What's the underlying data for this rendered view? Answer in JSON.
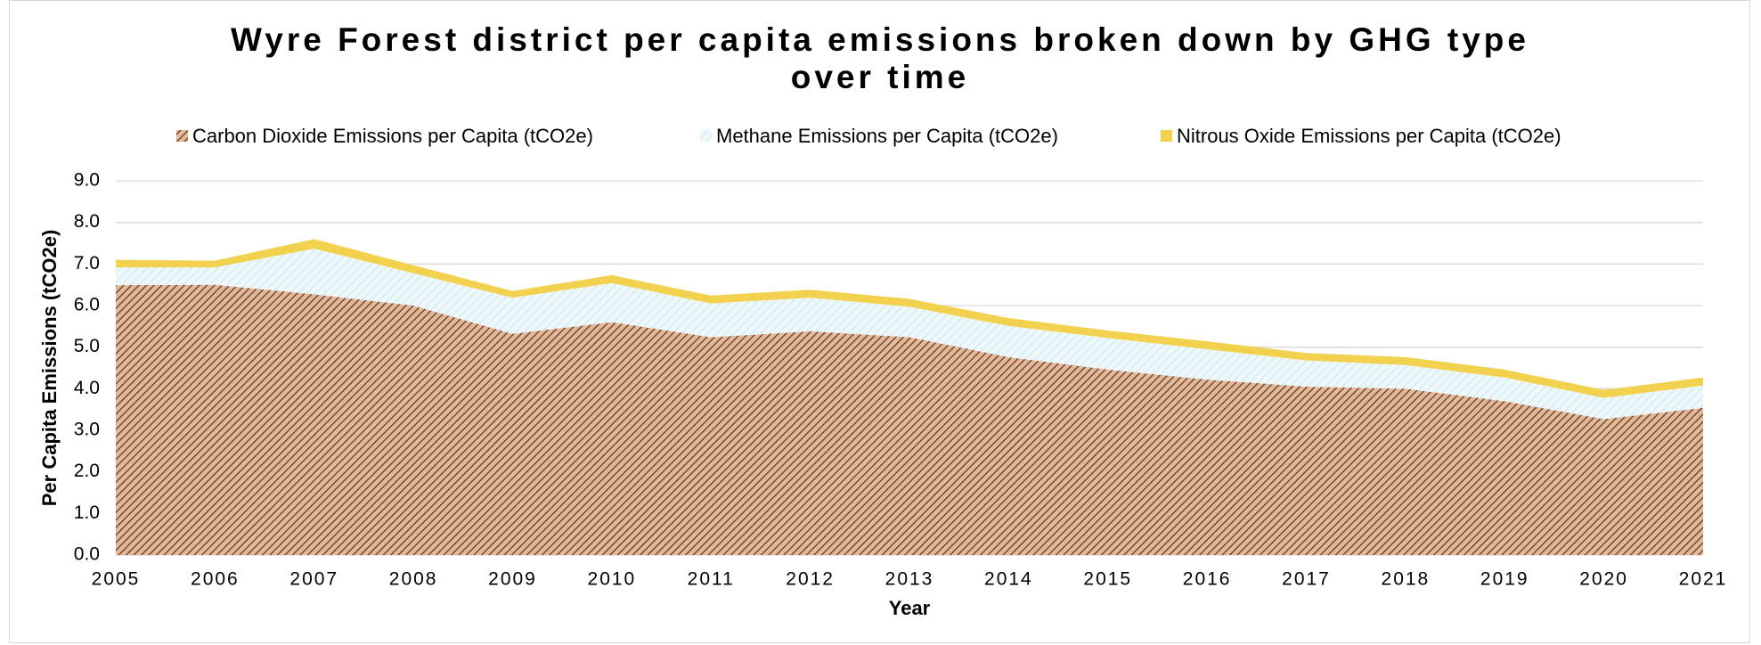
{
  "chart_data": {
    "type": "stacked_area",
    "title": "Wyre Forest district per capita emissions broken down by GHG type over time",
    "xlabel": "Year",
    "ylabel": "Per Capita Emissions (tCO2e)",
    "categories": [
      "2005",
      "2006",
      "2007",
      "2008",
      "2009",
      "2010",
      "2011",
      "2012",
      "2013",
      "2014",
      "2015",
      "2016",
      "2017",
      "2018",
      "2019",
      "2020",
      "2021"
    ],
    "series": [
      {
        "name": "Carbon Dioxide Emissions per Capita (tCO2e)",
        "color": "#9b6441",
        "values": [
          6.49,
          6.5,
          6.27,
          6.0,
          5.32,
          5.6,
          5.24,
          5.38,
          5.24,
          4.76,
          4.46,
          4.22,
          4.05,
          4.0,
          3.7,
          3.27,
          3.54
        ]
      },
      {
        "name": "Methane Emissions per Capita (tCO2e)",
        "color": "#d6eef4",
        "values": [
          0.43,
          0.42,
          1.1,
          0.78,
          0.87,
          0.94,
          0.81,
          0.81,
          0.73,
          0.75,
          0.76,
          0.73,
          0.63,
          0.57,
          0.57,
          0.51,
          0.54
        ]
      },
      {
        "name": "Nitrous Oxide Emissions per Capita (tCO2e)",
        "color": "#f2d14f",
        "values": [
          0.18,
          0.16,
          0.23,
          0.19,
          0.16,
          0.19,
          0.19,
          0.19,
          0.19,
          0.19,
          0.18,
          0.19,
          0.18,
          0.19,
          0.19,
          0.19,
          0.19
        ]
      }
    ],
    "ylim": [
      0,
      9
    ],
    "yticks": [
      {
        "value": 0,
        "label": "0.0"
      },
      {
        "value": 1,
        "label": "1.0"
      },
      {
        "value": 2,
        "label": "2.0"
      },
      {
        "value": 3,
        "label": "3.0"
      },
      {
        "value": 4,
        "label": "4.0"
      },
      {
        "value": 5,
        "label": "5.0"
      },
      {
        "value": 6,
        "label": "6.0"
      },
      {
        "value": 7,
        "label": "7.0"
      },
      {
        "value": 8,
        "label": "8.0"
      },
      {
        "value": 9,
        "label": "9.0"
      }
    ],
    "grid": true,
    "legend": "top"
  }
}
